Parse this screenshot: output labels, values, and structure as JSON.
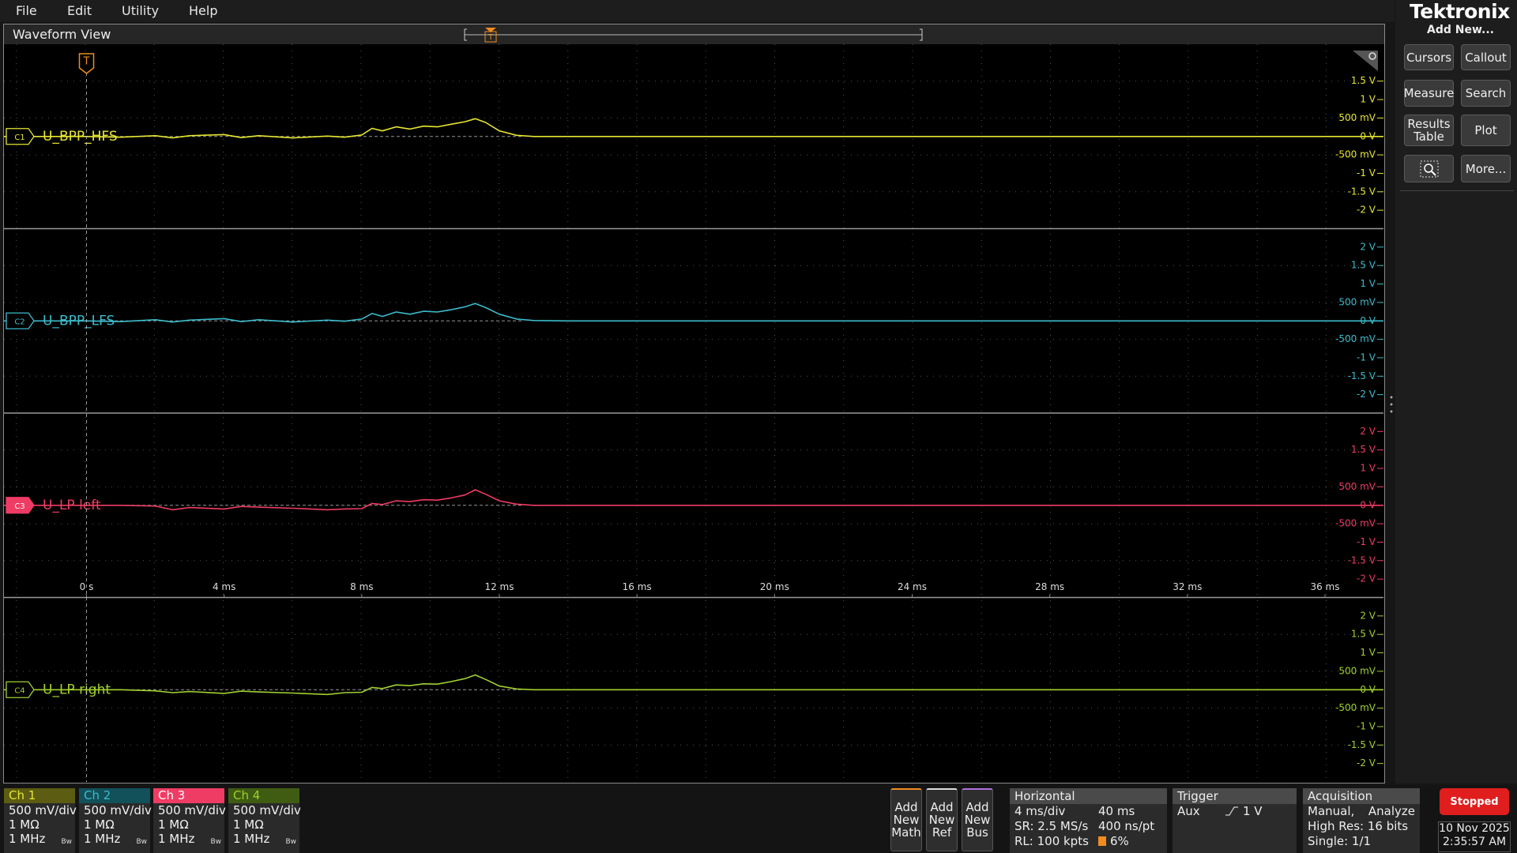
{
  "menu": [
    "File",
    "Edit",
    "Utility",
    "Help"
  ],
  "brand": "Tektronix",
  "sidebar": {
    "title": "Add New...",
    "buttons": [
      "Cursors",
      "Callout",
      "Measure",
      "Search",
      "Results Table",
      "Plot",
      "More..."
    ]
  },
  "waveform_view": {
    "title": "Waveform View"
  },
  "chart_data": [
    {
      "type": "line",
      "badge": "C1",
      "badge_style": "outline",
      "x": [
        -2.4,
        -1,
        0,
        1,
        2,
        2.5,
        3,
        4,
        4.5,
        5,
        6,
        7,
        7.5,
        8,
        8.3,
        8.6,
        9,
        9.4,
        9.8,
        10.2,
        10.6,
        11,
        11.3,
        11.6,
        12,
        12.5,
        13,
        14,
        20,
        28,
        37.7
      ],
      "series": [
        {
          "name": "U_BPP_HFS",
          "color": "#e6e632",
          "values": [
            0,
            0,
            0,
            -0.02,
            0.02,
            -0.04,
            0.02,
            0.05,
            -0.03,
            0.02,
            -0.04,
            0.01,
            -0.02,
            0.04,
            0.22,
            0.15,
            0.26,
            0.2,
            0.28,
            0.26,
            0.33,
            0.4,
            0.48,
            0.38,
            0.15,
            0.03,
            0,
            0,
            0,
            0,
            0
          ]
        }
      ],
      "xlim": [
        -2.4,
        37.7
      ],
      "ylim": [
        -2.5,
        2.5
      ],
      "yticks": [
        {
          "value": 1.5,
          "label": "1.5 V"
        },
        {
          "value": 1,
          "label": "1 V"
        },
        {
          "value": 0.5,
          "label": "500 mV"
        },
        {
          "value": 0,
          "label": "0 V"
        },
        {
          "value": -0.5,
          "label": "-500 mV"
        },
        {
          "value": -1,
          "label": "-1 V"
        },
        {
          "value": -1.5,
          "label": "-1.5 V"
        },
        {
          "value": -2,
          "label": "-2 V"
        }
      ]
    },
    {
      "type": "line",
      "badge": "C2",
      "badge_style": "outline",
      "x": [
        -2.4,
        -1,
        0,
        1,
        2,
        2.5,
        3,
        4,
        4.5,
        5,
        6,
        7,
        7.5,
        8,
        8.3,
        8.6,
        9,
        9.4,
        9.8,
        10.2,
        10.6,
        11,
        11.3,
        11.6,
        12,
        12.5,
        13,
        14,
        20,
        28,
        37.7
      ],
      "series": [
        {
          "name": "U_BPP_LFS",
          "color": "#3cbccc",
          "values": [
            0,
            0,
            0,
            -0.02,
            0.03,
            -0.03,
            0.02,
            0.06,
            -0.02,
            0.03,
            -0.03,
            0.02,
            -0.01,
            0.05,
            0.2,
            0.12,
            0.24,
            0.18,
            0.26,
            0.24,
            0.3,
            0.38,
            0.47,
            0.36,
            0.18,
            0.05,
            0.01,
            0,
            0,
            0,
            0
          ]
        }
      ],
      "xlim": [
        -2.4,
        37.7
      ],
      "ylim": [
        -2.5,
        2.5
      ],
      "yticks": [
        {
          "value": 2,
          "label": "2 V"
        },
        {
          "value": 1.5,
          "label": "1.5 V"
        },
        {
          "value": 1,
          "label": "1 V"
        },
        {
          "value": 0.5,
          "label": "500 mV"
        },
        {
          "value": 0,
          "label": "0 V"
        },
        {
          "value": -0.5,
          "label": "-500 mV"
        },
        {
          "value": -1,
          "label": "-1 V"
        },
        {
          "value": -1.5,
          "label": "-1.5 V"
        },
        {
          "value": -2,
          "label": "-2 V"
        }
      ]
    },
    {
      "type": "line",
      "badge": "C3",
      "badge_style": "filled",
      "x": [
        -2.4,
        -1,
        0,
        1,
        2,
        2.5,
        3,
        4,
        4.5,
        5,
        6,
        7,
        7.5,
        8,
        8.3,
        8.6,
        9,
        9.4,
        9.8,
        10.2,
        10.6,
        11,
        11.3,
        11.6,
        12,
        12.5,
        13,
        14,
        20,
        28,
        37.7
      ],
      "series": [
        {
          "name": "U_LP left",
          "color": "#ee3c64",
          "values": [
            0,
            0,
            0,
            0,
            -0.02,
            -0.12,
            -0.06,
            -0.1,
            -0.03,
            -0.05,
            -0.08,
            -0.12,
            -0.1,
            -0.09,
            0.05,
            0.02,
            0.12,
            0.1,
            0.15,
            0.14,
            0.2,
            0.28,
            0.42,
            0.3,
            0.12,
            0.03,
            0,
            0,
            0,
            0,
            0
          ]
        }
      ],
      "xlim": [
        -2.4,
        37.7
      ],
      "ylim": [
        -2.5,
        2.5
      ],
      "xticks": [
        {
          "value": 0,
          "label": "0 s"
        },
        {
          "value": 4,
          "label": "4 ms"
        },
        {
          "value": 8,
          "label": "8 ms"
        },
        {
          "value": 12,
          "label": "12 ms"
        },
        {
          "value": 16,
          "label": "16 ms"
        },
        {
          "value": 20,
          "label": "20 ms"
        },
        {
          "value": 24,
          "label": "24 ms"
        },
        {
          "value": 28,
          "label": "28 ms"
        },
        {
          "value": 32,
          "label": "32 ms"
        },
        {
          "value": 36,
          "label": "36 ms"
        }
      ],
      "yticks": [
        {
          "value": 2,
          "label": "2 V"
        },
        {
          "value": 1.5,
          "label": "1.5 V"
        },
        {
          "value": 1,
          "label": "1 V"
        },
        {
          "value": 0.5,
          "label": "500 mV"
        },
        {
          "value": 0,
          "label": "0 V"
        },
        {
          "value": -0.5,
          "label": "-500 mV"
        },
        {
          "value": -1,
          "label": "-1 V"
        },
        {
          "value": -1.5,
          "label": "-1.5 V"
        },
        {
          "value": -2,
          "label": "-2 V"
        }
      ]
    },
    {
      "type": "line",
      "badge": "C4",
      "badge_style": "outline",
      "x": [
        -2.4,
        -1,
        0,
        1,
        2,
        2.5,
        3,
        4,
        4.5,
        5,
        6,
        7,
        7.5,
        8,
        8.3,
        8.6,
        9,
        9.4,
        9.8,
        10.2,
        10.6,
        11,
        11.3,
        11.6,
        12,
        12.5,
        13,
        14,
        20,
        28,
        37.7
      ],
      "series": [
        {
          "name": "U_LP right",
          "color": "#a0d030",
          "values": [
            0,
            0,
            0,
            0,
            -0.03,
            -0.08,
            -0.05,
            -0.1,
            -0.04,
            -0.06,
            -0.09,
            -0.13,
            -0.08,
            -0.07,
            0.06,
            0.03,
            0.13,
            0.11,
            0.16,
            0.15,
            0.22,
            0.3,
            0.4,
            0.28,
            0.1,
            0.02,
            0,
            0,
            0,
            0,
            0
          ]
        }
      ],
      "xlim": [
        -2.4,
        37.7
      ],
      "ylim": [
        -2.5,
        2.5
      ],
      "yticks": [
        {
          "value": 2,
          "label": "2 V"
        },
        {
          "value": 1.5,
          "label": "1.5 V"
        },
        {
          "value": 1,
          "label": "1 V"
        },
        {
          "value": 0.5,
          "label": "500 mV"
        },
        {
          "value": 0,
          "label": "0 V"
        },
        {
          "value": -0.5,
          "label": "-500 mV"
        },
        {
          "value": -1,
          "label": "-1 V"
        },
        {
          "value": -1.5,
          "label": "-1.5 V"
        },
        {
          "value": -2,
          "label": "-2 V"
        }
      ]
    }
  ],
  "channels": [
    {
      "name": "Ch 1",
      "scale": "500 mV/div",
      "impedance": "1 MΩ",
      "bandwidth": "1 MHz",
      "bw_mark": "Bw"
    },
    {
      "name": "Ch 2",
      "scale": "500 mV/div",
      "impedance": "1 MΩ",
      "bandwidth": "1 MHz",
      "bw_mark": "Bw"
    },
    {
      "name": "Ch 3",
      "scale": "500 mV/div",
      "impedance": "1 MΩ",
      "bandwidth": "1 MHz",
      "bw_mark": "Bw"
    },
    {
      "name": "Ch 4",
      "scale": "500 mV/div",
      "impedance": "1 MΩ",
      "bandwidth": "1 MHz",
      "bw_mark": "Bw"
    }
  ],
  "add_new": [
    [
      "Add",
      "New",
      "Math"
    ],
    [
      "Add",
      "New",
      "Ref"
    ],
    [
      "Add",
      "New",
      "Bus"
    ]
  ],
  "horizontal": {
    "title": "Horizontal",
    "scale": "4 ms/div",
    "duration": "40 ms",
    "sample_rate": "SR: 2.5 MS/s",
    "resolution": "400 ns/pt",
    "record_length": "RL: 100 kpts",
    "position": "6%"
  },
  "trigger": {
    "title": "Trigger",
    "source": "Aux",
    "level": "1 V"
  },
  "acquisition": {
    "title": "Acquisition",
    "mode": "Manual,",
    "analyze": "Analyze",
    "resolution": "High Res: 16 bits",
    "count": "Single: 1/1"
  },
  "status": "Stopped",
  "date": "10 Nov 2025",
  "time": "2:35:57 AM"
}
